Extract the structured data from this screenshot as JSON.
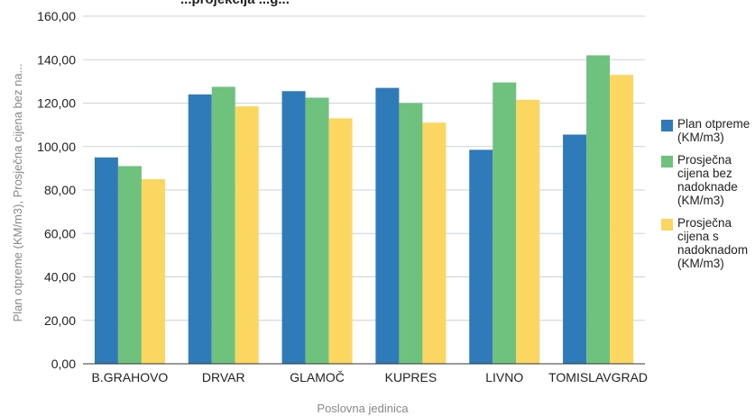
{
  "chart_data": {
    "type": "bar",
    "title": "...projekcija ...g...",
    "xlabel": "Poslovna jedinica",
    "ylabel": "Plan otpreme (KM/m3), Prosječna cijena bez na...",
    "ylim": [
      0,
      160
    ],
    "yticks": [
      "0,00",
      "20,00",
      "40,00",
      "60,00",
      "80,00",
      "100,00",
      "120,00",
      "140,00",
      "160,00"
    ],
    "categories": [
      "B.GRAHOVO",
      "DRVAR",
      "GLAMOČ",
      "KUPRES",
      "LIVNO",
      "TOMISLAVGRAD"
    ],
    "series": [
      {
        "name": "Plan otpreme (KM/m3)",
        "color": "#2f7ab8",
        "values": [
          95,
          124,
          125.5,
          127,
          98.5,
          105.5
        ]
      },
      {
        "name": "Prosječna cijena bez nadoknade (KM/m3)",
        "color": "#6fc17e",
        "values": [
          91,
          127.5,
          122.5,
          120,
          129.5,
          142
        ]
      },
      {
        "name": "Prosječna cijena s nadoknadom (KM/m3)",
        "color": "#fbd660",
        "values": [
          85,
          118.5,
          113,
          111,
          121.5,
          133
        ]
      }
    ],
    "grid": true,
    "legend": "right"
  }
}
